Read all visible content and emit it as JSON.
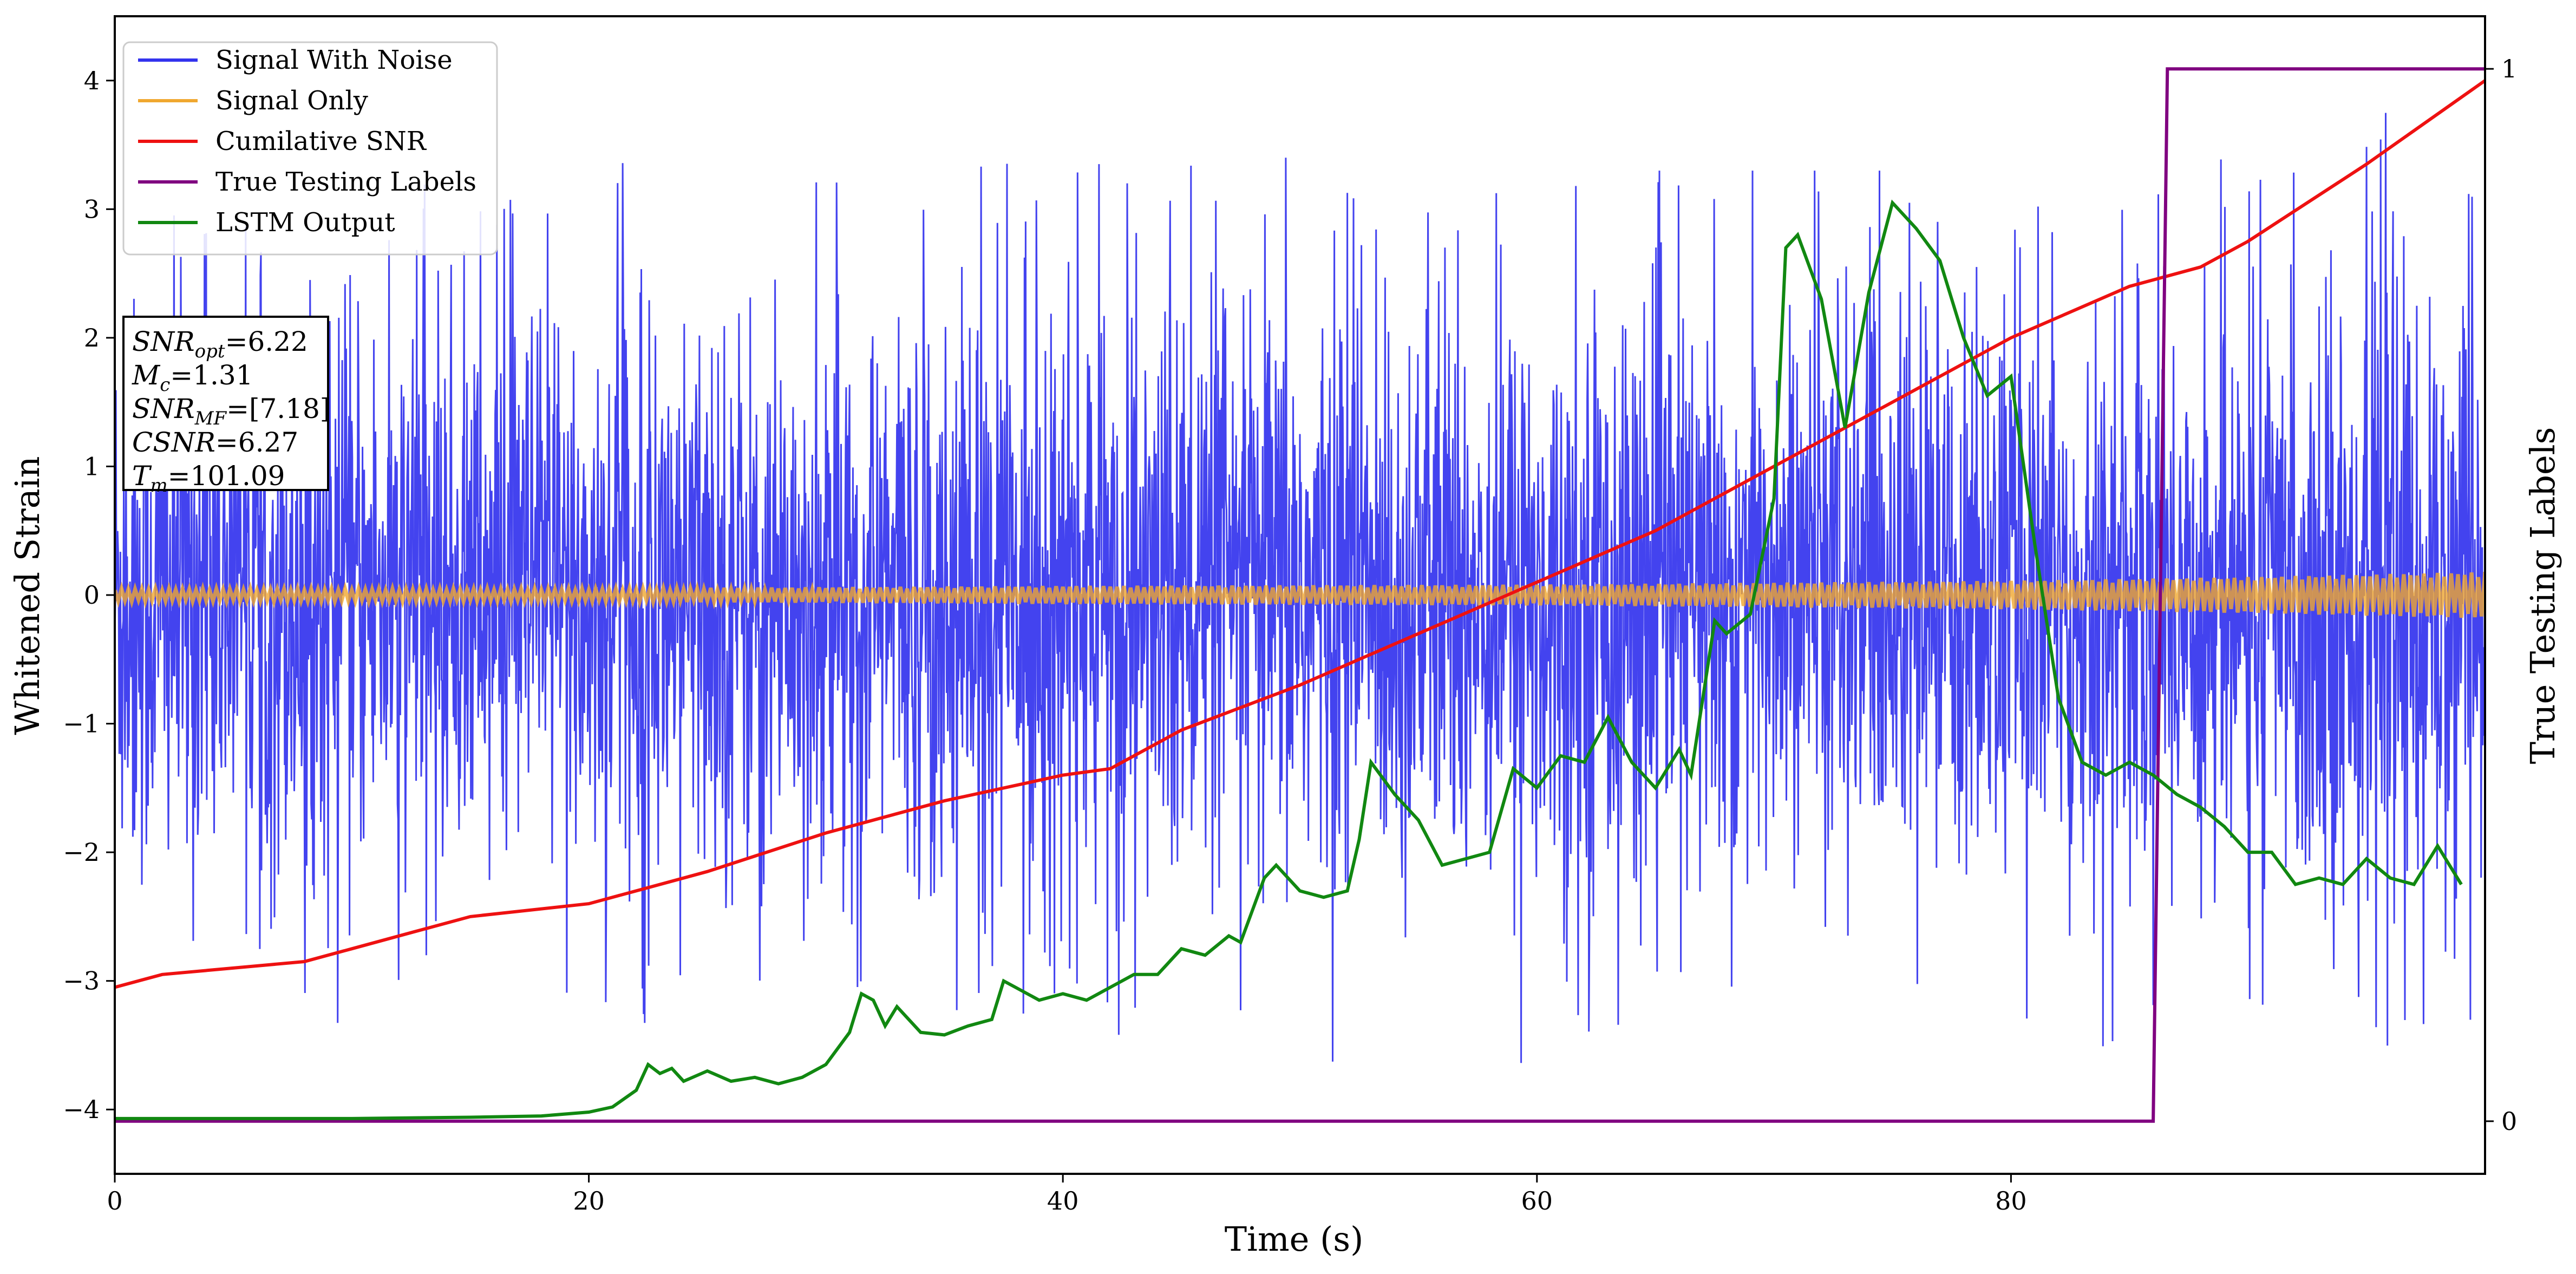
{
  "chart_data": {
    "type": "line",
    "title": "",
    "xlabel": "Time (s)",
    "ylabel_left": "Whitened Strain",
    "ylabel_right": "True Testing Labels",
    "xlim": [
      0,
      100
    ],
    "ylim_left": [
      -4.5,
      4.5
    ],
    "ylim_right": [
      -0.05,
      1.05
    ],
    "x_ticks": [
      0,
      20,
      40,
      60,
      80
    ],
    "x_tick_labels": [
      "0",
      "20",
      "40",
      "60",
      "80"
    ],
    "y_left_ticks": [
      -4,
      -3,
      -2,
      -1,
      0,
      1,
      2,
      3,
      4
    ],
    "y_left_tick_labels": [
      "−4",
      "−3",
      "−2",
      "−1",
      "0",
      "1",
      "2",
      "3",
      "4"
    ],
    "y_right_ticks": [
      0,
      1
    ],
    "y_right_tick_labels": [
      "0",
      "1"
    ],
    "grid": false,
    "legend_position": "top-left",
    "series": [
      {
        "name": "Signal With Noise",
        "color": "#3333ee",
        "axis": "left",
        "style": "noise",
        "envelope_x": [
          0,
          10,
          20,
          30,
          40,
          50,
          60,
          70,
          80,
          90,
          100
        ],
        "envelope_upper": [
          3.1,
          3.1,
          3.4,
          3.2,
          3.4,
          3.4,
          3.3,
          3.3,
          3.3,
          3.4,
          4.0
        ],
        "envelope_lower": [
          -4.0,
          -3.3,
          -3.5,
          -3.4,
          -3.6,
          -3.6,
          -3.8,
          -3.3,
          -3.5,
          -3.6,
          -3.5
        ]
      },
      {
        "name": "Signal Only",
        "color": "#f0a830",
        "axis": "left",
        "style": "band",
        "x": [
          0,
          20,
          40,
          60,
          80,
          90,
          100
        ],
        "amplitude": [
          0.05,
          0.05,
          0.07,
          0.08,
          0.11,
          0.14,
          0.18
        ]
      },
      {
        "name": "Cumilative SNR",
        "color": "#ee1111",
        "axis": "left",
        "style": "line",
        "x": [
          0,
          2,
          5,
          8,
          10,
          13,
          15,
          20,
          25,
          30,
          35,
          40,
          42,
          45,
          50,
          55,
          60,
          65,
          70,
          75,
          80,
          85,
          88,
          90,
          95,
          100
        ],
        "values": [
          -3.05,
          -2.95,
          -2.9,
          -2.85,
          -2.75,
          -2.6,
          -2.5,
          -2.4,
          -2.15,
          -1.85,
          -1.6,
          -1.4,
          -1.35,
          -1.05,
          -0.7,
          -0.3,
          0.1,
          0.5,
          1.0,
          1.5,
          2.0,
          2.4,
          2.55,
          2.75,
          3.35,
          4.0
        ]
      },
      {
        "name": "True Testing Labels",
        "color": "#800080",
        "axis": "right",
        "style": "step",
        "x": [
          0,
          86.0,
          86.6,
          100
        ],
        "values": [
          0,
          0,
          1,
          1
        ]
      },
      {
        "name": "LSTM Output",
        "color": "#118811",
        "axis": "left",
        "style": "line",
        "x": [
          0,
          10,
          15,
          18,
          20,
          21,
          22,
          22.5,
          23,
          23.5,
          24,
          25,
          26,
          27,
          28,
          29,
          30,
          31,
          31.5,
          32,
          32.5,
          33,
          34,
          35,
          36,
          37,
          37.5,
          38,
          39,
          40,
          41,
          42,
          43,
          44,
          45,
          46,
          47,
          47.5,
          48,
          48.5,
          49,
          50,
          51,
          52,
          52.5,
          53,
          54,
          55,
          56,
          57,
          58,
          59,
          60,
          61,
          62,
          63,
          64,
          65,
          66,
          66.5,
          67,
          67.5,
          68,
          69,
          70,
          70.5,
          71,
          72,
          73,
          74,
          75,
          76,
          77,
          78,
          79,
          80,
          81,
          82,
          83,
          84,
          85,
          86,
          87,
          88,
          89,
          90,
          91,
          92,
          93,
          94,
          95,
          96,
          97,
          98,
          99
        ],
        "values": [
          -4.07,
          -4.07,
          -4.06,
          -4.05,
          -4.02,
          -3.98,
          -3.85,
          -3.65,
          -3.72,
          -3.68,
          -3.78,
          -3.7,
          -3.78,
          -3.75,
          -3.8,
          -3.75,
          -3.65,
          -3.4,
          -3.1,
          -3.15,
          -3.35,
          -3.2,
          -3.4,
          -3.42,
          -3.35,
          -3.3,
          -3.0,
          -3.05,
          -3.15,
          -3.1,
          -3.15,
          -3.05,
          -2.95,
          -2.95,
          -2.75,
          -2.8,
          -2.65,
          -2.7,
          -2.45,
          -2.2,
          -2.1,
          -2.3,
          -2.35,
          -2.3,
          -1.9,
          -1.3,
          -1.55,
          -1.75,
          -2.1,
          -2.05,
          -2.0,
          -1.35,
          -1.5,
          -1.25,
          -1.3,
          -0.95,
          -1.3,
          -1.5,
          -1.2,
          -1.4,
          -0.8,
          -0.2,
          -0.3,
          -0.15,
          0.75,
          2.7,
          2.8,
          2.3,
          1.3,
          2.35,
          3.05,
          2.85,
          2.6,
          2.0,
          1.55,
          1.7,
          0.4,
          -0.8,
          -1.3,
          -1.4,
          -1.3,
          -1.4,
          -1.55,
          -1.65,
          -1.8,
          -2.0,
          -2.0,
          -2.25,
          -2.2,
          -2.25,
          -2.05,
          -2.2,
          -2.25,
          -1.95,
          -2.25
        ]
      }
    ],
    "annotation_box": {
      "lines": [
        {
          "main": "SNR",
          "sub": "opt",
          "value": "=6.22"
        },
        {
          "main": "M",
          "sub": "c",
          "value": "=1.31"
        },
        {
          "main": "SNR",
          "sub": "MF",
          "value": "=[7.18]"
        },
        {
          "main": "CSNR",
          "sub": "",
          "value": "=6.27"
        },
        {
          "main": "T",
          "sub": "m",
          "value": "=101.09"
        }
      ]
    }
  }
}
